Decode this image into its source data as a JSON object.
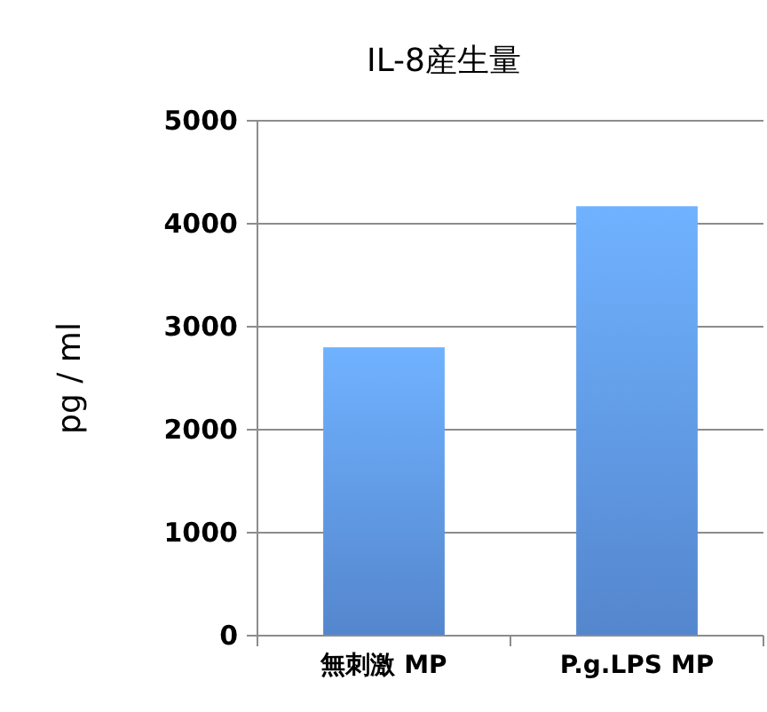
{
  "chart_data": {
    "type": "bar",
    "title": "IL-8産生量",
    "ylabel": "pg / ml",
    "categories": [
      "無刺激 MP",
      "P.g.LPS MP"
    ],
    "values": [
      2800,
      4170
    ],
    "color": "#5e95e4",
    "ylim": [
      0,
      5000
    ],
    "yticks": [
      0,
      1000,
      2000,
      3000,
      4000,
      5000
    ],
    "grid": "y"
  }
}
